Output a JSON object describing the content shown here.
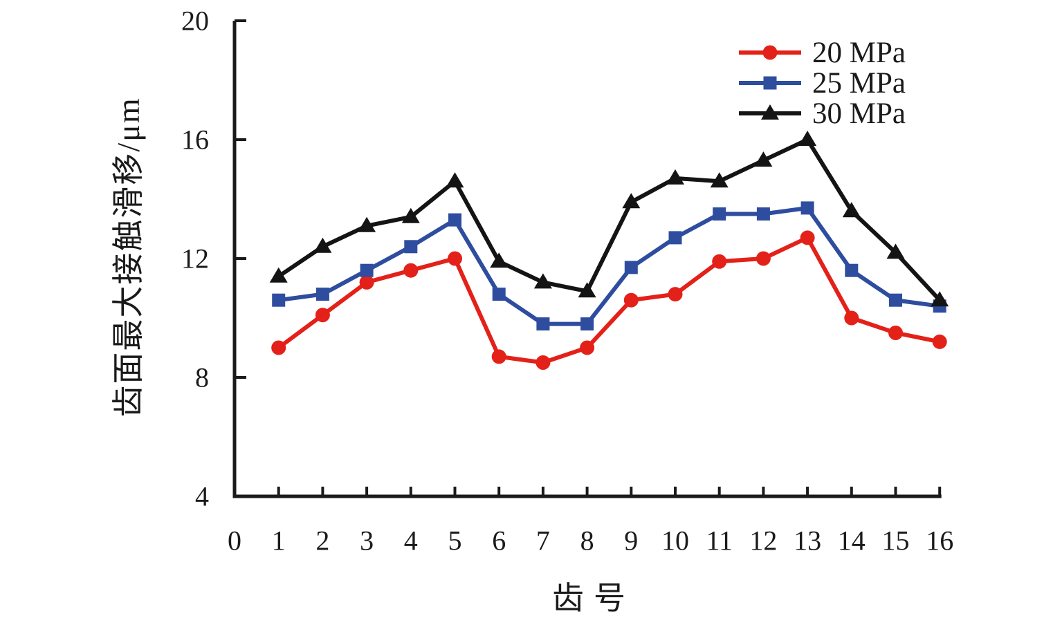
{
  "chart_data": {
    "type": "line",
    "title": "",
    "xlabel": "齿号",
    "ylabel": "齿面最大接触滑移/μm",
    "x": [
      1,
      2,
      3,
      4,
      5,
      6,
      7,
      8,
      9,
      10,
      11,
      12,
      13,
      14,
      15,
      16
    ],
    "x_ticks": [
      0,
      1,
      2,
      3,
      4,
      5,
      6,
      7,
      8,
      9,
      10,
      11,
      12,
      13,
      14,
      15,
      16
    ],
    "y_ticks": [
      4,
      8,
      12,
      16,
      20
    ],
    "xlim": [
      0,
      16
    ],
    "ylim": [
      4,
      20
    ],
    "grid": false,
    "legend_position": "top-right",
    "axis_color": "#1a1a1a",
    "series": [
      {
        "name": "20 MPa",
        "color": "#e32119",
        "marker": "circle",
        "values": [
          9.0,
          10.1,
          11.2,
          11.6,
          12.0,
          8.7,
          8.5,
          9.0,
          10.6,
          10.8,
          11.9,
          12.0,
          12.7,
          10.0,
          9.5,
          9.2
        ]
      },
      {
        "name": "25 MPa",
        "color": "#2e4d9f",
        "marker": "square",
        "values": [
          10.6,
          10.8,
          11.6,
          12.4,
          13.3,
          10.8,
          9.8,
          9.8,
          11.7,
          12.7,
          13.5,
          13.5,
          13.7,
          11.6,
          10.6,
          10.4
        ]
      },
      {
        "name": "30 MPa",
        "color": "#141414",
        "marker": "triangle",
        "values": [
          11.4,
          12.4,
          13.1,
          13.4,
          14.6,
          11.9,
          11.2,
          10.9,
          13.9,
          14.7,
          14.6,
          15.3,
          16.0,
          13.6,
          12.2,
          10.6
        ]
      }
    ]
  }
}
